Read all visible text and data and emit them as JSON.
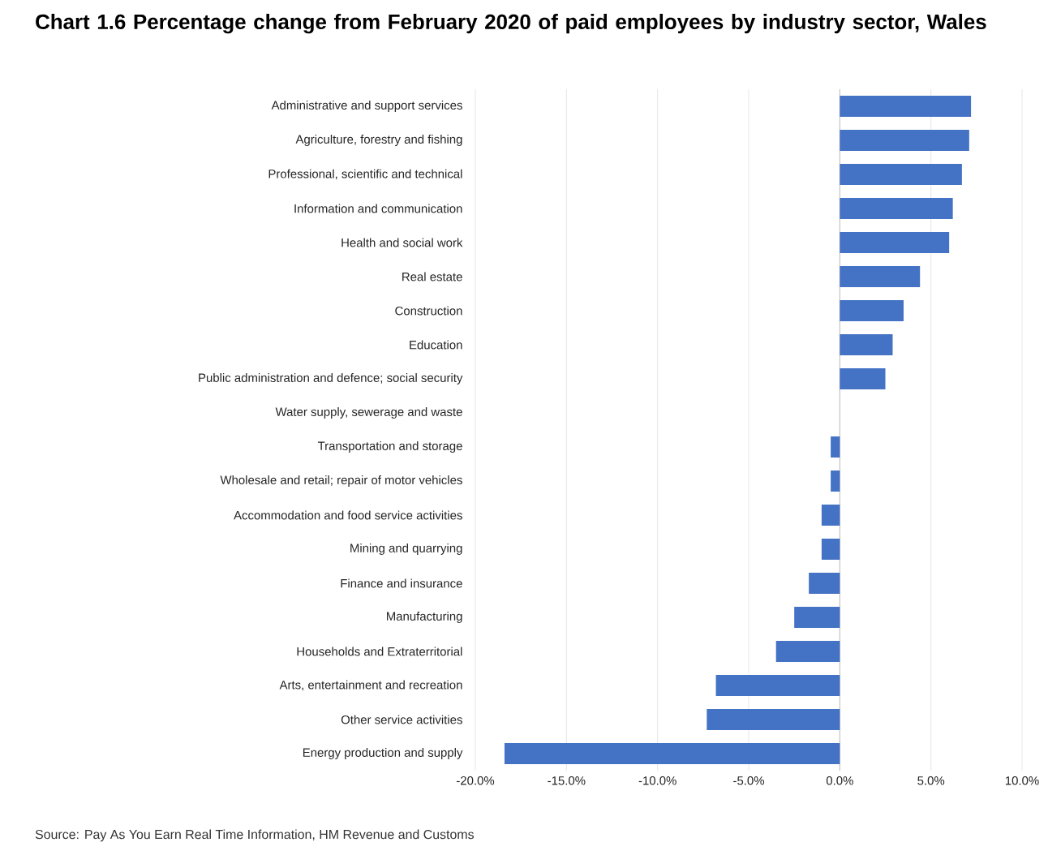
{
  "chart_data": {
    "type": "bar",
    "orientation": "horizontal",
    "title": "Chart 1.6 Percentage change from February 2020 of paid employees by industry sector, Wales",
    "categories": [
      "Administrative and support services",
      "Agriculture, forestry and fishing",
      "Professional, scientific and technical",
      "Information and communication",
      "Health and social work",
      "Real estate",
      "Construction",
      "Education",
      "Public administration and defence; social security",
      "Water supply, sewerage and waste",
      "Transportation and storage",
      "Wholesale and retail; repair of motor vehicles",
      "Accommodation and food service activities",
      "Mining and quarrying",
      "Finance and insurance",
      "Manufacturing",
      "Households and Extraterritorial",
      "Arts, entertainment and recreation",
      "Other service activities",
      "Energy production and supply"
    ],
    "values": [
      7.2,
      7.1,
      6.7,
      6.2,
      6.0,
      4.4,
      3.5,
      2.9,
      2.5,
      0,
      -0.5,
      -0.5,
      -1.0,
      -1.0,
      -1.7,
      -2.5,
      -3.5,
      -6.8,
      -7.3,
      -18.4
    ],
    "color": "#4472c4",
    "xlim": [
      -20,
      10
    ],
    "xticks": [
      {
        "value": -20,
        "label": "-20.0%"
      },
      {
        "value": -15,
        "label": "-15.0%"
      },
      {
        "value": -10,
        "label": "-10.0%"
      },
      {
        "value": -5,
        "label": "-5.0%"
      },
      {
        "value": 0,
        "label": "0.0%"
      },
      {
        "value": 5,
        "label": "5.0%"
      },
      {
        "value": 10,
        "label": "10.0%"
      }
    ],
    "grid": "x",
    "annotations": [
      "Source: Pay As You Earn Real Time Information, HM Revenue and Customs"
    ]
  }
}
